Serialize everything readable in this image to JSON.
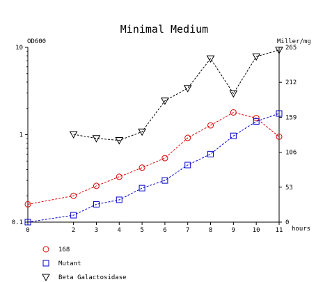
{
  "chart_data": {
    "type": "line",
    "title": "Minimal Medium",
    "x": [
      0,
      2,
      3,
      4,
      5,
      6,
      7,
      8,
      9,
      10,
      11
    ],
    "xlabel": "hours",
    "xlim": [
      0,
      11
    ],
    "x_ticks": [
      "0",
      "2",
      "3",
      "4",
      "5",
      "6",
      "7",
      "8",
      "9",
      "10",
      "11"
    ],
    "y_left": {
      "label": "OD600",
      "scale": "log",
      "lim": [
        0.1,
        10
      ],
      "ticks": [
        "0.1",
        "1",
        "10"
      ]
    },
    "y_right": {
      "label": "Miller/mg",
      "scale": "linear",
      "lim": [
        0,
        265
      ],
      "ticks": [
        "0",
        "53",
        "106",
        "159",
        "212",
        "265"
      ]
    },
    "grid": false,
    "legend_position": "bottom-left",
    "series": [
      {
        "name": "168",
        "axis": "left",
        "color": "#dd0000",
        "marker": "circle",
        "x": [
          0,
          2,
          3,
          4,
          5,
          6,
          7,
          8,
          9,
          10,
          11
        ],
        "values": [
          0.16,
          0.2,
          0.26,
          0.33,
          0.42,
          0.54,
          0.92,
          1.28,
          1.8,
          1.55,
          0.95
        ]
      },
      {
        "name": "Mutant",
        "axis": "left",
        "color": "#0000cc",
        "marker": "square",
        "x": [
          0,
          2,
          3,
          4,
          5,
          6,
          7,
          8,
          9,
          10,
          11
        ],
        "values": [
          0.1,
          0.12,
          0.16,
          0.18,
          0.245,
          0.3,
          0.45,
          0.6,
          0.97,
          1.42,
          1.75
        ]
      },
      {
        "name": "Beta Galactosidase",
        "axis": "right",
        "color": "#000000",
        "marker": "triangle-down",
        "x": [
          2,
          3,
          4,
          5,
          6,
          7,
          8,
          9,
          10,
          11
        ],
        "values": [
          133,
          127,
          124,
          137,
          184,
          203,
          248,
          195,
          251,
          261
        ]
      }
    ]
  }
}
